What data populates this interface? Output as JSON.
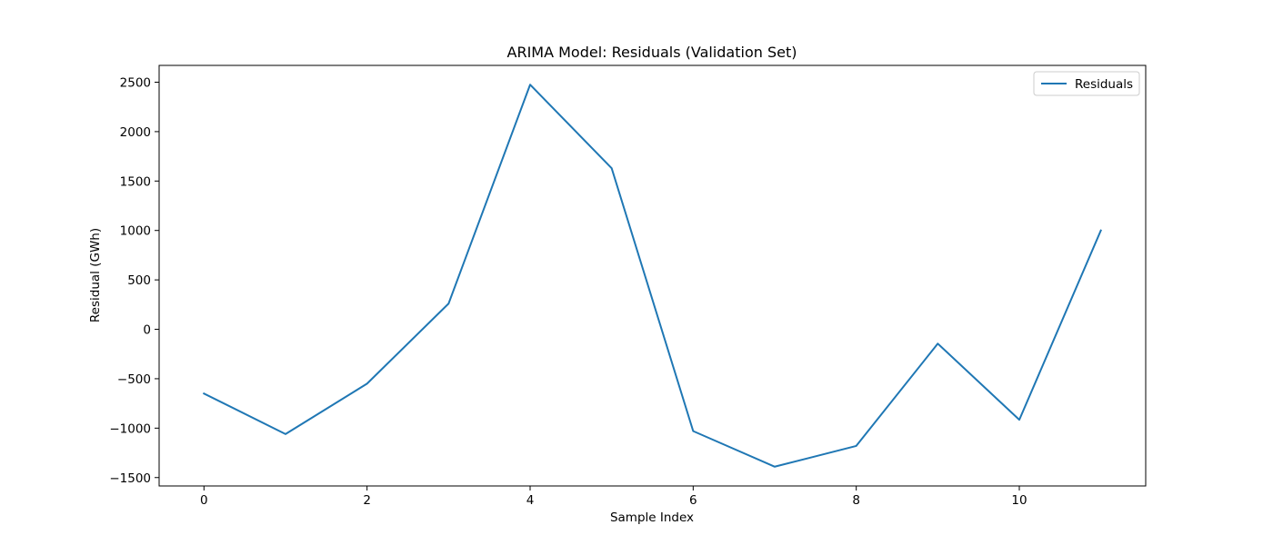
{
  "chart_data": {
    "type": "line",
    "title": "ARIMA Model: Residuals (Validation Set)",
    "xlabel": "Sample Index",
    "ylabel": "Residual (GWh)",
    "x": [
      0,
      1,
      2,
      3,
      4,
      5,
      6,
      7,
      8,
      9,
      10,
      11
    ],
    "series": [
      {
        "name": "Residuals",
        "color": "#1f77b4",
        "values": [
          -650,
          -1060,
          -550,
          260,
          2475,
          1630,
          -1030,
          -1390,
          -1180,
          -145,
          -915,
          1000
        ]
      }
    ],
    "xlim": [
      -0.55,
      11.55
    ],
    "ylim": [
      -1585,
      2670
    ],
    "xticks": [
      0,
      2,
      4,
      6,
      8,
      10
    ],
    "xtick_labels": [
      "0",
      "2",
      "4",
      "6",
      "8",
      "10"
    ],
    "yticks": [
      -1500,
      -1000,
      -500,
      0,
      500,
      1000,
      1500,
      2000,
      2500
    ],
    "ytick_labels": [
      "−1500",
      "−1000",
      "−500",
      "0",
      "500",
      "1000",
      "1500",
      "2000",
      "2500"
    ],
    "grid": false,
    "legend_position": "top-right"
  }
}
